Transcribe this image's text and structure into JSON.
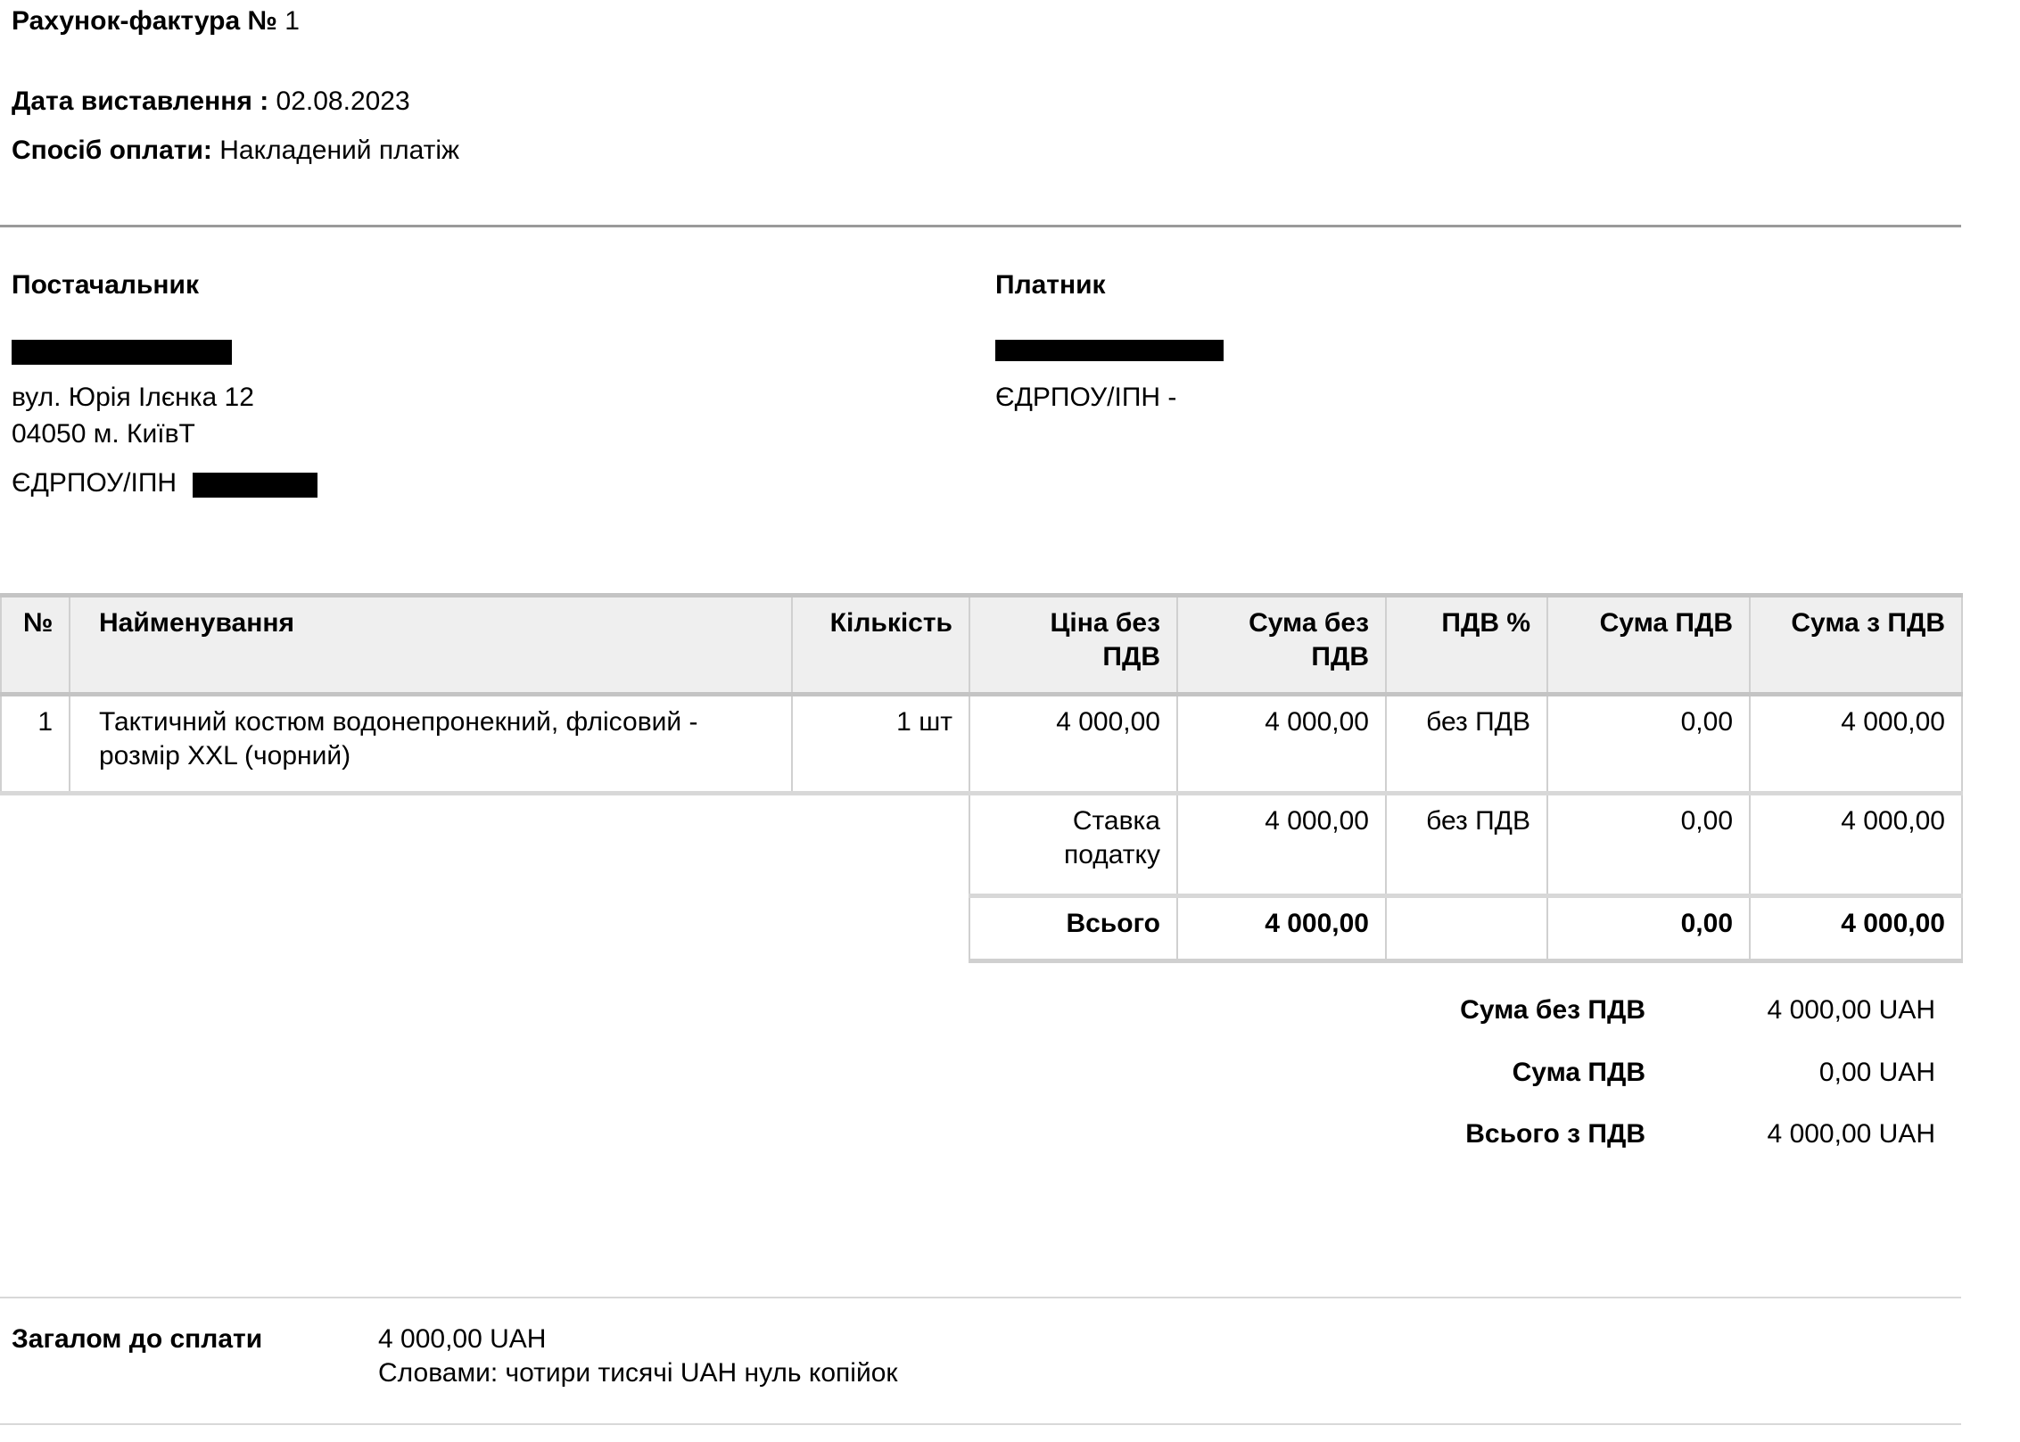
{
  "header": {
    "title_label": "Рахунок-фактура №",
    "title_number": "1",
    "date_label": "Дата виставлення :",
    "date_value": "02.08.2023",
    "payment_label": "Спосіб оплати:",
    "payment_value": "Накладений платіж"
  },
  "supplier": {
    "heading": "Постачальник",
    "address_line1": "вул. Юрія Ілєнка 12",
    "address_line2": "04050 м. КиївТ",
    "tax_id_label": "ЄДРПОУ/ІПН"
  },
  "payer": {
    "heading": "Платник",
    "tax_id_line": "ЄДРПОУ/ІПН -"
  },
  "table": {
    "columns": [
      "№",
      "Найменування",
      "Кількість",
      "Ціна без ПДВ",
      "Сума без ПДВ",
      "ПДВ %",
      "Сума ПДВ",
      "Сума з ПДВ"
    ],
    "rows": [
      {
        "no": "1",
        "name": "Тактичний костюм водонепронекний, флісовий - розмір XXL (чорний)",
        "qty": "1 шт",
        "price": "4 000,00",
        "sum_net": "4 000,00",
        "vat_pct": "без ПДВ",
        "vat_sum": "0,00",
        "sum_gross": "4 000,00"
      }
    ],
    "rate_row": {
      "label": "Ставка податку",
      "sum_net": "4 000,00",
      "vat_pct": "без ПДВ",
      "vat_sum": "0,00",
      "sum_gross": "4 000,00"
    },
    "total_row": {
      "label": "Всього",
      "sum_net": "4 000,00",
      "vat_sum": "0,00",
      "sum_gross": "4 000,00"
    }
  },
  "summary": [
    {
      "label": "Сума без ПДВ",
      "value": "4 000,00 UAH"
    },
    {
      "label": "Сума ПДВ",
      "value": "0,00 UAH"
    },
    {
      "label": "Всього з ПДВ",
      "value": "4 000,00 UAH"
    }
  ],
  "footer": {
    "total_label": "Загалом до сплати",
    "total_value": "4 000,00 UAH",
    "in_words": "Словами: чотири тисячі UAH нуль копійок"
  },
  "colors": {
    "rule": "#9a9a9a",
    "header_bg": "#efefef",
    "border": "#d0d0d0",
    "redaction": "#000000"
  }
}
